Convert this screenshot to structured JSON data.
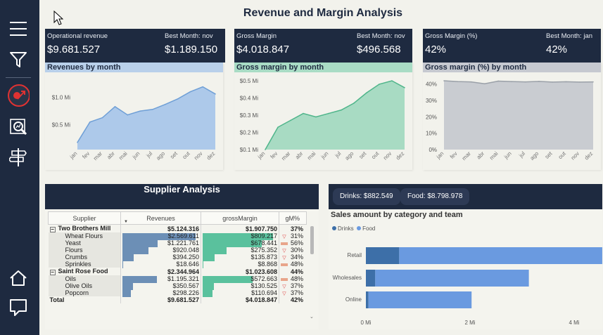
{
  "title": "Revenue and Margin Analysis",
  "nav": {
    "icons": [
      "menu-icon",
      "filter-icon",
      "revenue-target-icon",
      "search-chart-icon",
      "signpost-icon",
      "home-icon",
      "comment-icon"
    ]
  },
  "kpis": [
    {
      "label": "Operational revenue",
      "value": "$9.681.527",
      "best_label": "Best Month: nov",
      "best_value": "$1.189.150"
    },
    {
      "label": "Gross Margin",
      "value": "$4.018.847",
      "best_label": "Best Month: nov",
      "best_value": "$496.568"
    },
    {
      "label": "Gross Margin (%)",
      "value": "42%",
      "best_label": "Best Month: jan",
      "best_value": "42%"
    }
  ],
  "colors": {
    "navy": "#1e2a40",
    "revenue": "#a9c3e4",
    "margin": "#a6d8c0",
    "pct": "#c9ccd0",
    "bar_drinks": "#3d6fa8",
    "bar_food": "#6a9ae0"
  },
  "chart_data": [
    {
      "type": "area",
      "title": "Revenues by month",
      "categories": [
        "jan",
        "fev",
        "mar",
        "abr",
        "mai",
        "jun",
        "jul",
        "ago",
        "set",
        "out",
        "nov",
        "dez"
      ],
      "y_ticks": [
        "$0.5 Mi",
        "$1.0 Mi"
      ],
      "ylim": [
        0.05,
        1.3
      ],
      "values": [
        0.18,
        0.55,
        0.63,
        0.83,
        0.68,
        0.75,
        0.78,
        0.87,
        0.97,
        1.1,
        1.19,
        1.06
      ]
    },
    {
      "type": "area",
      "title": "Gross margin by month",
      "categories": [
        "jan",
        "fev",
        "mar",
        "abr",
        "mai",
        "jun",
        "jul",
        "ago",
        "set",
        "out",
        "nov",
        "dez"
      ],
      "y_ticks": [
        "$0.1 Mi",
        "$0.2 Mi",
        "$0.3 Mi",
        "$0.4 Mi",
        "$0.5 Mi"
      ],
      "ylim": [
        0.1,
        0.5
      ],
      "values": [
        0.1,
        0.23,
        0.27,
        0.31,
        0.29,
        0.31,
        0.33,
        0.37,
        0.43,
        0.48,
        0.5,
        0.46
      ]
    },
    {
      "type": "area",
      "title": "Gross margin (%) by month",
      "categories": [
        "jan",
        "fev",
        "mar",
        "abr",
        "mai",
        "jun",
        "jul",
        "ago",
        "set",
        "out",
        "nov",
        "dez"
      ],
      "y_ticks": [
        "0%",
        "10%",
        "20%",
        "30%",
        "40%"
      ],
      "ylim": [
        0,
        42
      ],
      "values": [
        42,
        41.5,
        41.3,
        40.2,
        41.8,
        41.5,
        41.3,
        41.6,
        41.2,
        41.4,
        41.2,
        41.3
      ]
    },
    {
      "type": "bar",
      "title": "Sales amount by category and team",
      "orientation": "horizontal",
      "stacked": true,
      "categories": [
        "Retail",
        "Wholesales",
        "Online"
      ],
      "x_ticks": [
        "0 Mi",
        "2 Mi",
        "4 Mi"
      ],
      "xlim": [
        0,
        4.5
      ],
      "series": [
        {
          "name": "Drinks",
          "values": [
            0.64,
            0.18,
            0.05
          ]
        },
        {
          "name": "Food",
          "values": [
            3.9,
            2.95,
            1.98
          ]
        }
      ]
    }
  ],
  "supplier": {
    "title": "Supplier Analysis",
    "columns": [
      "Supplier",
      "Revenues",
      "grossMargin",
      "gM%"
    ],
    "rows": [
      {
        "type": "grp",
        "name": "Two Brothers Mill",
        "rev": "$5.124.316",
        "gm": "$1.907.750",
        "pct": "37%",
        "rev_frac": 0,
        "gm_frac": 0
      },
      {
        "type": "sub",
        "name": "Wheat Flours",
        "rev": "$2.569.611",
        "gm": "$809.217",
        "pct": "31%",
        "rev_frac": 1.0,
        "gm_frac": 1.0,
        "mk": "down"
      },
      {
        "type": "sub",
        "name": "Yeast",
        "rev": "$1.221.761",
        "gm": "$678.441",
        "pct": "56%",
        "rev_frac": 0.48,
        "gm_frac": 0.84,
        "mk": "dash"
      },
      {
        "type": "sub",
        "name": "Flours",
        "rev": "$920.048",
        "gm": "$275.352",
        "pct": "30%",
        "rev_frac": 0.36,
        "gm_frac": 0.34,
        "mk": "down"
      },
      {
        "type": "sub",
        "name": "Crumbs",
        "rev": "$394.250",
        "gm": "$135.873",
        "pct": "34%",
        "rev_frac": 0.15,
        "gm_frac": 0.17,
        "mk": "down"
      },
      {
        "type": "sub",
        "name": "Sprinkles",
        "rev": "$18.646",
        "gm": "$8.868",
        "pct": "48%",
        "rev_frac": 0.01,
        "gm_frac": 0.01,
        "mk": "dash"
      },
      {
        "type": "grp",
        "name": "Saint Rose Food",
        "rev": "$2.344.964",
        "gm": "$1.023.608",
        "pct": "44%",
        "rev_frac": 0,
        "gm_frac": 0
      },
      {
        "type": "sub",
        "name": "Oils",
        "rev": "$1.195.321",
        "gm": "$572.663",
        "pct": "48%",
        "rev_frac": 0.47,
        "gm_frac": 0.71,
        "mk": "dash"
      },
      {
        "type": "sub",
        "name": "Olive Oils",
        "rev": "$350.567",
        "gm": "$130.525",
        "pct": "37%",
        "rev_frac": 0.14,
        "gm_frac": 0.16,
        "mk": "down"
      },
      {
        "type": "sub",
        "name": "Popcorn",
        "rev": "$298.226",
        "gm": "$110.694",
        "pct": "37%",
        "rev_frac": 0.12,
        "gm_frac": 0.14,
        "mk": "down"
      },
      {
        "type": "total",
        "name": "Total",
        "rev": "$9.681.527",
        "gm": "$4.018.847",
        "pct": "42%",
        "rev_frac": 0,
        "gm_frac": 0
      }
    ]
  },
  "pills": [
    {
      "label": "Drinks: $882.549"
    },
    {
      "label": "Food: $8.798.978"
    }
  ],
  "sales": {
    "title": "Sales amount by category and team",
    "legend": [
      "Drinks",
      "Food"
    ]
  }
}
